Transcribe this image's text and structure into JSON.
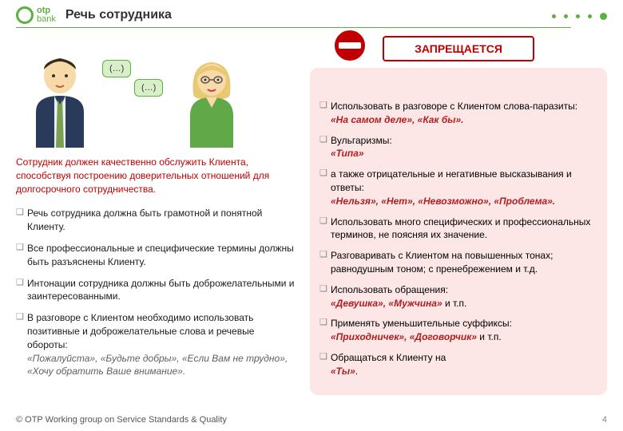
{
  "header": {
    "logo_top": "otp",
    "logo_bottom": "bank",
    "title": "Речь сотрудника"
  },
  "illustration": {
    "bubble1": "(…)",
    "bubble2": "(…)"
  },
  "left": {
    "statement": "Сотрудник должен качественно обслужить Клиента, способствуя построению доверительных отношений для долгосрочного сотрудничества.",
    "items": [
      {
        "text": "Речь сотрудника должна быть грамотной и понятной Клиенту."
      },
      {
        "text": "Все профессиональные и специфические термины должны быть разъяснены Клиенту."
      },
      {
        "text": "Интонации сотрудника должны быть доброжелательными и заинтересованными."
      },
      {
        "text": "В разговоре с Клиентом необходимо использовать позитивные и доброжелательные слова и речевые обороты:",
        "ex": "«Пожалуйста», «Будьте добры», «Если Вам не трудно», «Хочу обратить Ваше внимание»."
      }
    ]
  },
  "forbidden": {
    "title": "ЗАПРЕЩАЕТСЯ",
    "items": [
      {
        "pre": "Использовать в разговоре с Клиентом слова-паразиты:",
        "emph": "«На самом деле», «Как бы»."
      },
      {
        "pre": "Вульгаризмы:",
        "emph": "«Типа»"
      },
      {
        "pre": "а также отрицательные и негативные высказывания и ответы:",
        "emph": "«Нельзя», «Нет», «Невозможно», «Проблема»."
      },
      {
        "pre": "Использовать много специфических и профессиональных терминов, не поясняя их значение."
      },
      {
        "pre": "Разговаривать с Клиентом на повышенных тонах; равнодушным тоном; с пренебрежением и т.д."
      },
      {
        "pre": "Использовать обращения: ",
        "emph": "«Девушка», «Мужчина»",
        "post": " и т.п."
      },
      {
        "pre": "Применять уменьшительные суффиксы:",
        "emph": "«Приходничек», «Договорчик»",
        "post": " и т.п."
      },
      {
        "pre": "Обращаться к Клиенту на ",
        "emph": "«Ты»",
        "post": "."
      }
    ]
  },
  "footer": {
    "copyright": "© OTP Working group on Service Standards & Quality",
    "page": "4"
  },
  "colors": {
    "brand_green": "#5cb040",
    "danger_red": "#c00000",
    "pink_bg": "#fce6e6"
  }
}
